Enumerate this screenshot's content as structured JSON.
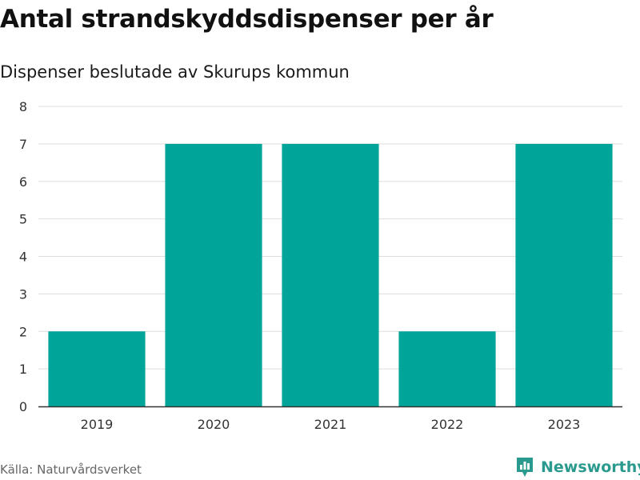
{
  "header": {
    "title": "Antal strandskyddsdispenser per år",
    "subtitle": "Dispenser beslutade av Skurups kommun"
  },
  "footer": {
    "source": "Källa: Naturvårdsverket",
    "brand": "Newsworthy"
  },
  "colors": {
    "bar": "#00a499",
    "grid": "#dddddd",
    "axis": "#333333",
    "brand": "#2a9a8e"
  },
  "chart_data": {
    "type": "bar",
    "categories": [
      "2019",
      "2020",
      "2021",
      "2022",
      "2023"
    ],
    "values": [
      2,
      7,
      7,
      2,
      7
    ],
    "ylim": [
      0,
      8
    ],
    "yticks": [
      0,
      1,
      2,
      3,
      4,
      5,
      6,
      7,
      8
    ],
    "xlabel": "",
    "ylabel": "",
    "grid": true,
    "legend": "none"
  }
}
